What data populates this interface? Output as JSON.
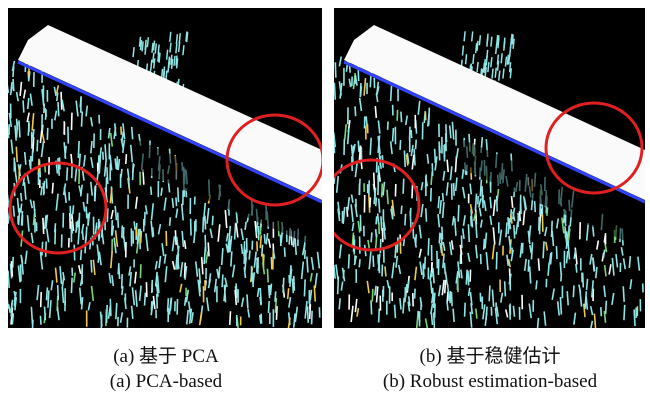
{
  "figures": [
    {
      "caption_zh": "(a) 基于 PCA",
      "caption_en": "(a) PCA-based"
    },
    {
      "caption_zh": "(b) 基于稳健估计",
      "caption_en": "(b) Robust estimation-based"
    }
  ]
}
